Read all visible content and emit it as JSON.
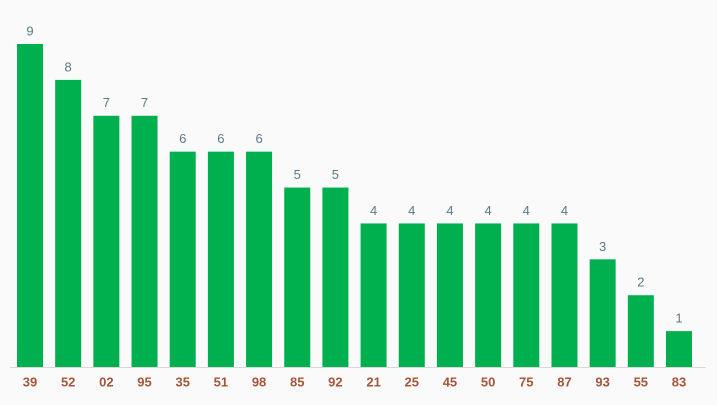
{
  "chart_data": {
    "type": "bar",
    "categories": [
      "39",
      "52",
      "02",
      "95",
      "35",
      "51",
      "98",
      "85",
      "92",
      "21",
      "25",
      "45",
      "50",
      "75",
      "87",
      "93",
      "55",
      "83"
    ],
    "values": [
      9,
      8,
      7,
      7,
      6,
      6,
      6,
      5,
      5,
      4,
      4,
      4,
      4,
      4,
      4,
      3,
      2,
      1
    ],
    "color": "#00b04f"
  }
}
